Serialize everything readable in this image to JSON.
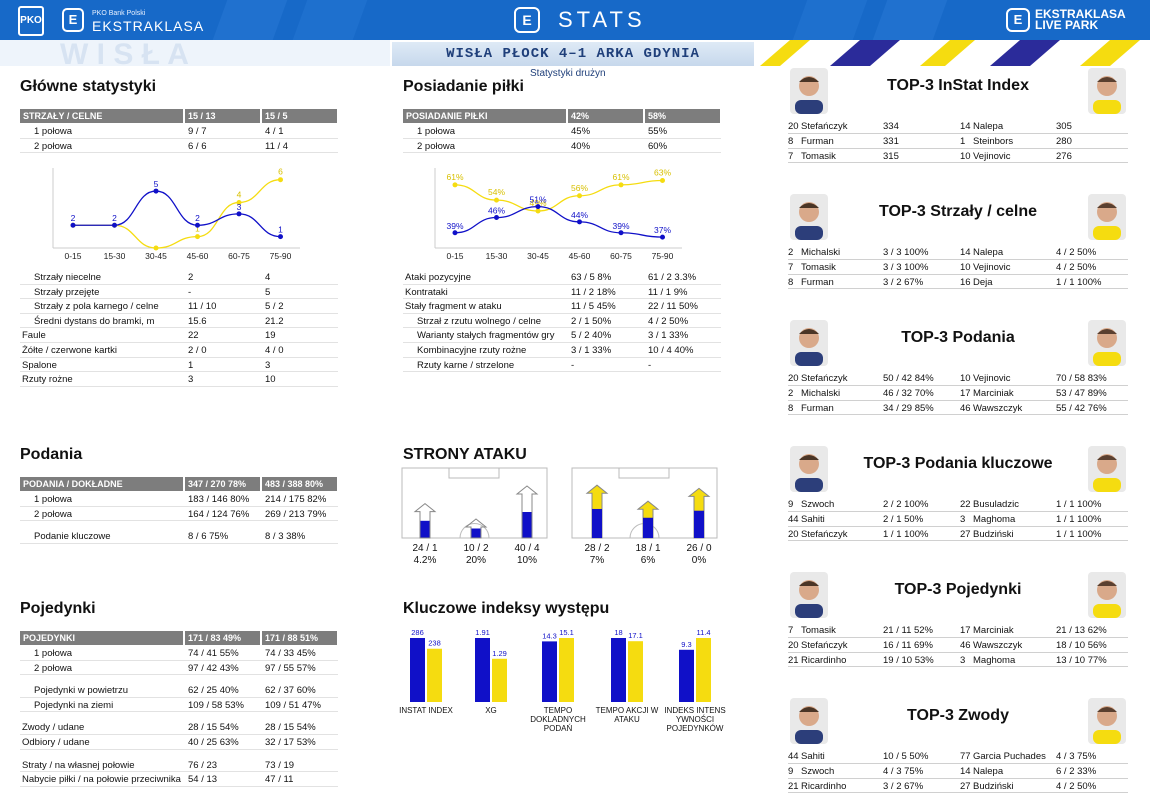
{
  "header": {
    "pko_logo": "PKO",
    "ek_logo": "E",
    "brand_sub": "PKO Bank Polski",
    "brand": "EKSTRAKLASA",
    "stats_logo": "E",
    "stats": "STATS",
    "right_logo": "E",
    "right_brand_1": "EKSTRAKLASA",
    "right_brand_2": "LIVE PARK"
  },
  "match": "WISŁA PŁOCK 4–1 ARKA GDYNIA",
  "team_stats": "Statystyki drużyn",
  "colors": {
    "home": "#1010c8",
    "away": "#f5dc10",
    "header": "#1769c8"
  },
  "main": {
    "title": "Główne statystyki",
    "header": [
      "STRZAŁY / CELNE",
      "15 / 13",
      "15 / 5"
    ],
    "halves": [
      [
        "1 połowa",
        "9 / 7",
        "4 / 1"
      ],
      [
        "2 połowa",
        "6 / 6",
        "11 / 4"
      ]
    ],
    "rows": [
      [
        "Strzały niecelne",
        "2",
        "4"
      ],
      [
        "Strzały przejęte",
        "-",
        "5"
      ],
      [
        "Strzały z pola karnego / celne",
        "11 / 10",
        "5 / 2"
      ],
      [
        "Średni dystans do bramki, m",
        "15.6",
        "21.2"
      ],
      [
        "Faule",
        "22",
        "19"
      ],
      [
        "Żółte / czerwone kartki",
        "2 / 0",
        "4 / 0"
      ],
      [
        "Spalone",
        "1",
        "3"
      ],
      [
        "Rzuty rożne",
        "3",
        "10"
      ]
    ],
    "indent": [
      true,
      true,
      true,
      true,
      false,
      false,
      false,
      false
    ]
  },
  "possession": {
    "title": "Posiadanie piłki",
    "header": [
      "POSIADANIE PIŁKI",
      "42%",
      "58%"
    ],
    "halves": [
      [
        "1 połowa",
        "45%",
        "55%"
      ],
      [
        "2 połowa",
        "40%",
        "60%"
      ]
    ],
    "rows": [
      [
        "Ataki pozycyjne",
        "63 / 5 8%",
        "61 / 2  3.3%"
      ],
      [
        "Kontrataki",
        "11 / 2 18%",
        "11 / 1  9%"
      ],
      [
        "Stały fragment w ataku",
        "11 / 5 45%",
        "22 / 11 50%"
      ],
      [
        "Strzał z rzutu wolnego / celne",
        "2 / 1   50%",
        "4 / 2    50%"
      ],
      [
        "Warianty stałych fragmentów gry",
        "5 / 2   40%",
        "3 / 1    33%"
      ],
      [
        "Kombinacyjne rzuty rożne",
        "3 / 1   33%",
        "10 / 4  40%"
      ],
      [
        "Rzuty karne /  strzelone",
        "-",
        "-"
      ]
    ],
    "indent": [
      false,
      false,
      false,
      true,
      true,
      true,
      true
    ]
  },
  "chart_data": [
    {
      "type": "line",
      "title": "",
      "categories": [
        "0-15",
        "15-30",
        "30-45",
        "45-60",
        "60-75",
        "75-90"
      ],
      "series": [
        {
          "values": [
            2,
            2,
            5,
            2,
            3,
            1
          ],
          "labels": [
            "2",
            "2",
            "5",
            "2",
            "3",
            "1"
          ]
        },
        {
          "values": [
            2,
            2,
            0,
            1,
            4,
            6
          ],
          "labels": [
            "",
            "",
            "",
            "1",
            "4",
            "6"
          ]
        }
      ]
    },
    {
      "type": "line",
      "title": "",
      "categories": [
        "0-15",
        "15-30",
        "30-45",
        "45-60",
        "60-75",
        "75-90"
      ],
      "series": [
        {
          "values": [
            39,
            46,
            51,
            44,
            39,
            37
          ],
          "labels": [
            "39%",
            "46%",
            "51%",
            "44%",
            "39%",
            "37%"
          ]
        },
        {
          "values": [
            61,
            54,
            49,
            56,
            61,
            63
          ],
          "labels": [
            "61%",
            "54%",
            "49%",
            "56%",
            "61%",
            "63%"
          ]
        }
      ]
    },
    {
      "type": "bar",
      "title": "",
      "categories": [
        "INSTAT INDEX",
        "XG",
        "TEMPO DOKLADNYCH PODAŃ",
        "TEMPO AKCJI W ATAKU",
        "INDEKS INTENSYWNOŚCI POJEDYNKÓW"
      ],
      "series": [
        {
          "values": [
            286,
            1.91,
            14.3,
            18,
            9.3
          ]
        },
        {
          "values": [
            238,
            1.29,
            15.1,
            17.1,
            11.4
          ]
        }
      ]
    },
    {
      "type": "bar",
      "title": "",
      "categories": [
        "left",
        "center",
        "right"
      ],
      "series": [
        {
          "values": [
            24,
            10,
            40
          ],
          "shares": [
            4.2,
            20,
            10
          ]
        },
        {
          "values": [
            28,
            18,
            26
          ],
          "shares": [
            7,
            6,
            0
          ]
        }
      ]
    }
  ],
  "passes": {
    "title": "Podania",
    "header": [
      "PODANIA / DOKŁADNE",
      "347 / 270 78%",
      "483 / 388 80%"
    ],
    "rows": [
      [
        "1 połowa",
        "183 / 146 80%",
        "214 / 175 82%"
      ],
      [
        "2 połowa",
        "164 / 124 76%",
        "269 / 213 79%"
      ],
      [
        "Podanie kluczowe",
        "8 / 6       75%",
        "8 / 3        38%"
      ]
    ]
  },
  "duels": {
    "title": "Pojedynki",
    "header": [
      "POJEDYNKI",
      "171 / 83 49%",
      "171 / 88 51%"
    ],
    "rows": [
      [
        "1 połowa",
        "74 / 41   55%",
        "74 / 33   45%"
      ],
      [
        "2 połowa",
        "97 / 42   43%",
        "97 / 55   57%"
      ],
      [
        "Pojedynki w powietrzu",
        "62 / 25   40%",
        "62 / 37   60%"
      ],
      [
        "Pojedynki na ziemi",
        "109 / 58 53%",
        "109 / 51 47%"
      ],
      [
        "Zwody / udane",
        "28 / 15   54%",
        "28 / 15   54%"
      ],
      [
        "Odbiory / udane",
        "40 / 25   63%",
        "32 / 17   53%"
      ],
      [
        "Straty / na własnej połowie",
        "76 / 23",
        "73 / 19"
      ],
      [
        "Nabycie piłki / na połowie przeciwnika",
        "54 / 13",
        "47 / 11"
      ]
    ]
  },
  "attack": {
    "title": "STRONY ATAKU",
    "home": [
      [
        "24 / 1",
        "4.2%"
      ],
      [
        "10 / 2",
        "20%"
      ],
      [
        "40 / 4",
        "10%"
      ]
    ],
    "away": [
      [
        "28 / 2",
        "7%"
      ],
      [
        "18 / 1",
        "6%"
      ],
      [
        "26 / 0",
        "0%"
      ]
    ]
  },
  "kpi": {
    "title": "Kluczowe indeksy występu",
    "labels": [
      "INSTAT INDEX",
      "XG",
      "TEMPO DOKLADNYCH PODAŃ",
      "TEMPO AKCJI W ATAKU",
      "INDEKS INTENS YWNOŚCI POJEDYNKÓW"
    ],
    "home": [
      "286",
      "1.91",
      "14.3",
      "18",
      "9.3"
    ],
    "away": [
      "238",
      "1.29",
      "15.1",
      "17.1",
      "11.4"
    ]
  },
  "top": [
    {
      "title": "TOP-3 InStat Index",
      "rows": [
        [
          "20",
          "Stefańczyk",
          "334",
          "14",
          "Nalepa",
          "305"
        ],
        [
          "8",
          "Furman",
          "331",
          "1",
          "Steinbors",
          "280"
        ],
        [
          "7",
          "Tomasik",
          "315",
          "10",
          "Vejinovic",
          "276"
        ]
      ]
    },
    {
      "title": "TOP-3 Strzały / celne",
      "rows": [
        [
          "2",
          "Michalski",
          "3 / 3  100%",
          "14",
          "Nalepa",
          "4 / 2  50%"
        ],
        [
          "7",
          "Tomasik",
          "3 / 3  100%",
          "10",
          "Vejinovic",
          "4 / 2  50%"
        ],
        [
          "8",
          "Furman",
          "3 / 2  67%",
          "16",
          "Deja",
          "1 / 1  100%"
        ]
      ]
    },
    {
      "title": "TOP-3 Podania",
      "rows": [
        [
          "20",
          "Stefańczyk",
          "50 / 42 84%",
          "10",
          "Vejinovic",
          "70 / 58 83%"
        ],
        [
          "2",
          "Michalski",
          "46 / 32 70%",
          "17",
          "Marciniak",
          "53 / 47 89%"
        ],
        [
          "8",
          "Furman",
          "34 / 29 85%",
          "46",
          "Wawszczyk",
          "55 / 42 76%"
        ]
      ]
    },
    {
      "title": "TOP-3 Podania kluczowe",
      "rows": [
        [
          "9",
          "Szwoch",
          "2 / 2  100%",
          "22",
          "Busuladzic",
          "1 / 1  100%"
        ],
        [
          "44",
          "Sahiti",
          "2 / 1  50%",
          "3",
          "Maghoma",
          "1 / 1  100%"
        ],
        [
          "20",
          "Stefańczyk",
          "1 / 1  100%",
          "27",
          "Budziński",
          "1 / 1  100%"
        ]
      ]
    },
    {
      "title": "TOP-3 Pojedynki",
      "rows": [
        [
          "7",
          "Tomasik",
          "21 / 11 52%",
          "17",
          "Marciniak",
          "21 / 13 62%"
        ],
        [
          "20",
          "Stefańczyk",
          "16 / 11 69%",
          "46",
          "Wawszczyk",
          "18 / 10 56%"
        ],
        [
          "21",
          "Ricardinho",
          "19 / 10 53%",
          "3",
          "Maghoma",
          "13 / 10 77%"
        ]
      ]
    },
    {
      "title": "TOP-3 Zwody",
      "rows": [
        [
          "44",
          "Sahiti",
          "10 / 5  50%",
          "77",
          "Garcia Puchades",
          "4 / 3  75%"
        ],
        [
          "9",
          "Szwoch",
          "4 / 3   75%",
          "14",
          "Nalepa",
          "6 / 2  33%"
        ],
        [
          "21",
          "Ricardinho",
          "3 / 2   67%",
          "27",
          "Budziński",
          "4 / 2  50%"
        ]
      ]
    }
  ]
}
